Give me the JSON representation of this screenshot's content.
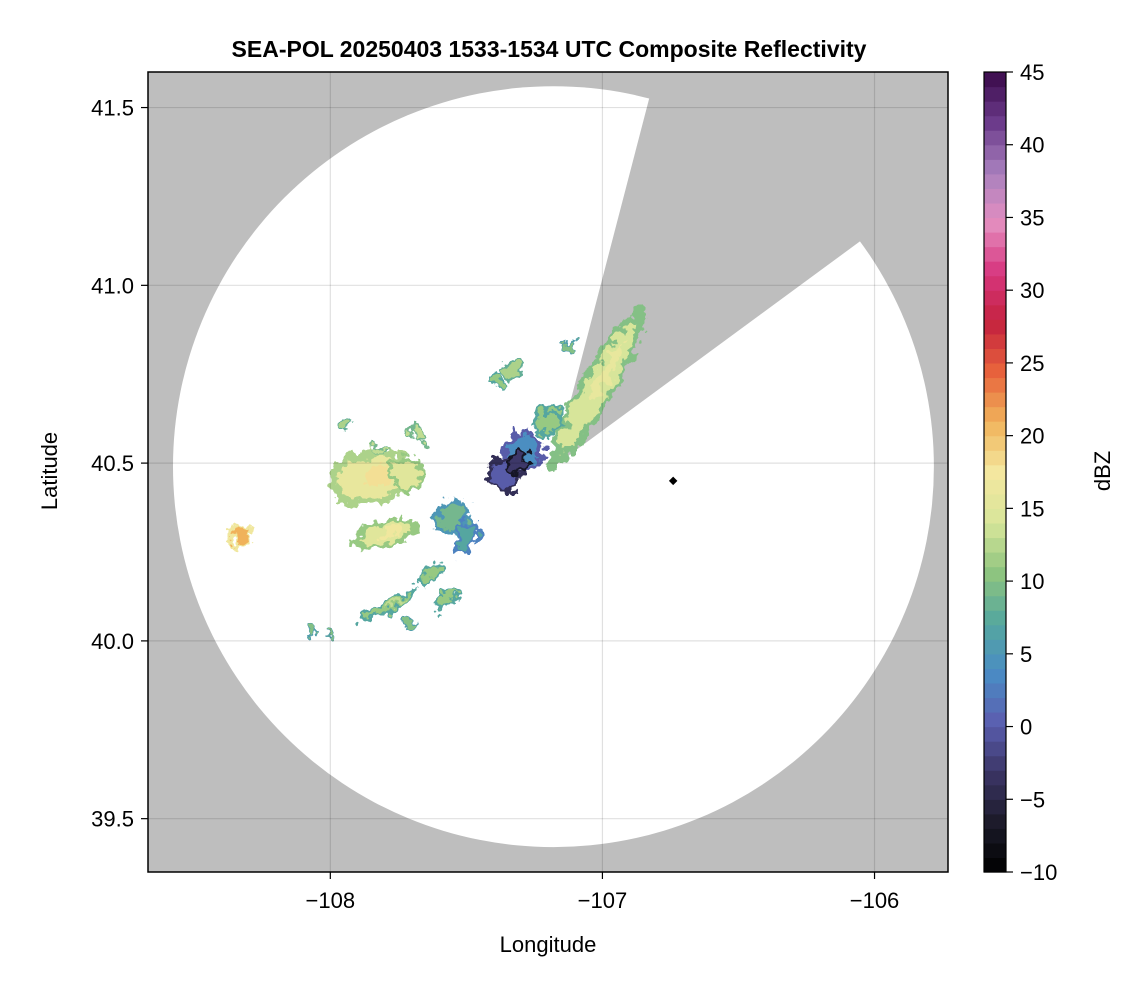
{
  "chart_data": {
    "type": "heatmap",
    "title": "SEA-POL 20250403 1533-1534 UTC Composite Reflectivity",
    "xlabel": "Longitude",
    "ylabel": "Latitude",
    "xlim": [
      -108.67,
      -105.73
    ],
    "ylim": [
      39.35,
      41.6
    ],
    "xticks": [
      -108,
      -107,
      -106
    ],
    "xtick_labels": [
      "−108",
      "−107",
      "−106"
    ],
    "yticks": [
      39.5,
      40.0,
      40.5,
      41.0,
      41.5
    ],
    "ytick_labels": [
      "39.5",
      "40.0",
      "40.5",
      "41.0",
      "41.5"
    ],
    "grid": true,
    "background_color": "#bebebe",
    "coverage": {
      "shape": "radar range circle with blocked sector",
      "center": [
        -107.18,
        40.49
      ],
      "radius_deg_lat": 1.07,
      "blocked_sector_edges": [
        [
          -106.83,
          41.52
        ],
        [
          -106.06,
          41.12
        ]
      ]
    },
    "radar_site_marker": [
      -106.74,
      40.45
    ],
    "colorbar": {
      "label": "dBZ",
      "min": -10,
      "max": 45,
      "ticks": [
        -10,
        -5,
        0,
        5,
        10,
        15,
        20,
        25,
        30,
        35,
        40,
        45
      ],
      "tick_labels": [
        "−10",
        "−5",
        "0",
        "5",
        "10",
        "15",
        "20",
        "25",
        "30",
        "35",
        "40",
        "45"
      ],
      "colormap": "batlow-like",
      "color_stops": [
        "#000000",
        "#1c1b2a",
        "#3b3566",
        "#5b5fb0",
        "#4a8cc4",
        "#55a79e",
        "#8fc57f",
        "#d8e69a",
        "#f4e79f",
        "#f0b35b",
        "#e8633c",
        "#c4223e",
        "#d7377f",
        "#e48fc0",
        "#a880be",
        "#6b3a8a",
        "#3a0a4a"
      ]
    },
    "echo_regions": [
      {
        "center": [
          -107.02,
          40.71
        ],
        "extent": [
          0.34,
          0.05
        ],
        "angle": -60,
        "dbz": 14
      },
      {
        "center": [
          -107.2,
          40.62
        ],
        "extent": [
          0.06,
          0.04
        ],
        "angle": -55,
        "dbz": 11
      },
      {
        "center": [
          -107.29,
          40.53
        ],
        "extent": [
          0.08,
          0.06
        ],
        "angle": -60,
        "dbz": 4
      },
      {
        "center": [
          -107.36,
          40.47
        ],
        "extent": [
          0.06,
          0.05
        ],
        "angle": -45,
        "dbz": 0
      },
      {
        "center": [
          -107.31,
          40.5
        ],
        "extent": [
          0.05,
          0.03
        ],
        "angle": -40,
        "dbz": -3
      },
      {
        "center": [
          -107.55,
          40.35
        ],
        "extent": [
          0.07,
          0.05
        ],
        "angle": -60,
        "dbz": 9
      },
      {
        "center": [
          -107.5,
          40.29
        ],
        "extent": [
          0.07,
          0.03
        ],
        "angle": -60,
        "dbz": 7
      },
      {
        "center": [
          -107.85,
          40.46
        ],
        "extent": [
          0.16,
          0.08
        ],
        "angle": -10,
        "dbz": 16
      },
      {
        "center": [
          -107.72,
          40.47
        ],
        "extent": [
          0.07,
          0.05
        ],
        "angle": 0,
        "dbz": 15
      },
      {
        "center": [
          -107.8,
          40.3
        ],
        "extent": [
          0.12,
          0.04
        ],
        "angle": -15,
        "dbz": 15
      },
      {
        "center": [
          -107.68,
          40.58
        ],
        "extent": [
          0.03,
          0.03
        ],
        "angle": 0,
        "dbz": 13
      },
      {
        "center": [
          -107.95,
          40.61
        ],
        "extent": [
          0.03,
          0.02
        ],
        "angle": 0,
        "dbz": 12
      },
      {
        "center": [
          -107.33,
          40.76
        ],
        "extent": [
          0.04,
          0.03
        ],
        "angle": 0,
        "dbz": 12
      },
      {
        "center": [
          -107.39,
          40.73
        ],
        "extent": [
          0.03,
          0.02
        ],
        "angle": 0,
        "dbz": 11
      },
      {
        "center": [
          -107.63,
          40.19
        ],
        "extent": [
          0.06,
          0.02
        ],
        "angle": -30,
        "dbz": 11
      },
      {
        "center": [
          -107.79,
          40.1
        ],
        "extent": [
          0.12,
          0.02
        ],
        "angle": -25,
        "dbz": 11
      },
      {
        "center": [
          -107.57,
          40.12
        ],
        "extent": [
          0.06,
          0.02
        ],
        "angle": -40,
        "dbz": 11
      },
      {
        "center": [
          -107.71,
          40.05
        ],
        "extent": [
          0.03,
          0.015
        ],
        "angle": 0,
        "dbz": 10
      },
      {
        "center": [
          -108.33,
          40.29
        ],
        "extent": [
          0.04,
          0.04
        ],
        "angle": -50,
        "dbz": 21
      },
      {
        "center": [
          -108.07,
          40.03
        ],
        "extent": [
          0.02,
          0.015
        ],
        "angle": 0,
        "dbz": 10
      },
      {
        "center": [
          -108.0,
          40.02
        ],
        "extent": [
          0.015,
          0.01
        ],
        "angle": 0,
        "dbz": 10
      },
      {
        "center": [
          -107.82,
          40.54
        ],
        "extent": [
          0.02,
          0.015
        ],
        "angle": 0,
        "dbz": 13
      },
      {
        "center": [
          -107.12,
          40.83
        ],
        "extent": [
          0.02,
          0.015
        ],
        "angle": 0,
        "dbz": 10
      }
    ]
  }
}
